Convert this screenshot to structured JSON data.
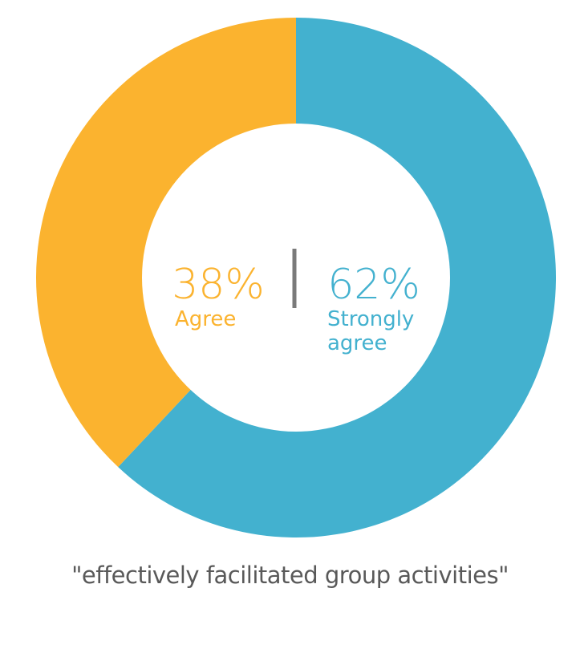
{
  "chart_data": {
    "type": "pie",
    "donut": true,
    "title": "\"effectively facilitated group activities\"",
    "slices": [
      {
        "label_lines": [
          "Strongly",
          "agree"
        ],
        "value": 62,
        "display": "62%",
        "color": "#43b1cf"
      },
      {
        "label_lines": [
          "Agree"
        ],
        "value": 38,
        "display": "38%",
        "color": "#fbb32f"
      }
    ]
  },
  "colors": {
    "divider": "#7a7a7a",
    "caption": "#595959",
    "background": "#ffffff"
  }
}
